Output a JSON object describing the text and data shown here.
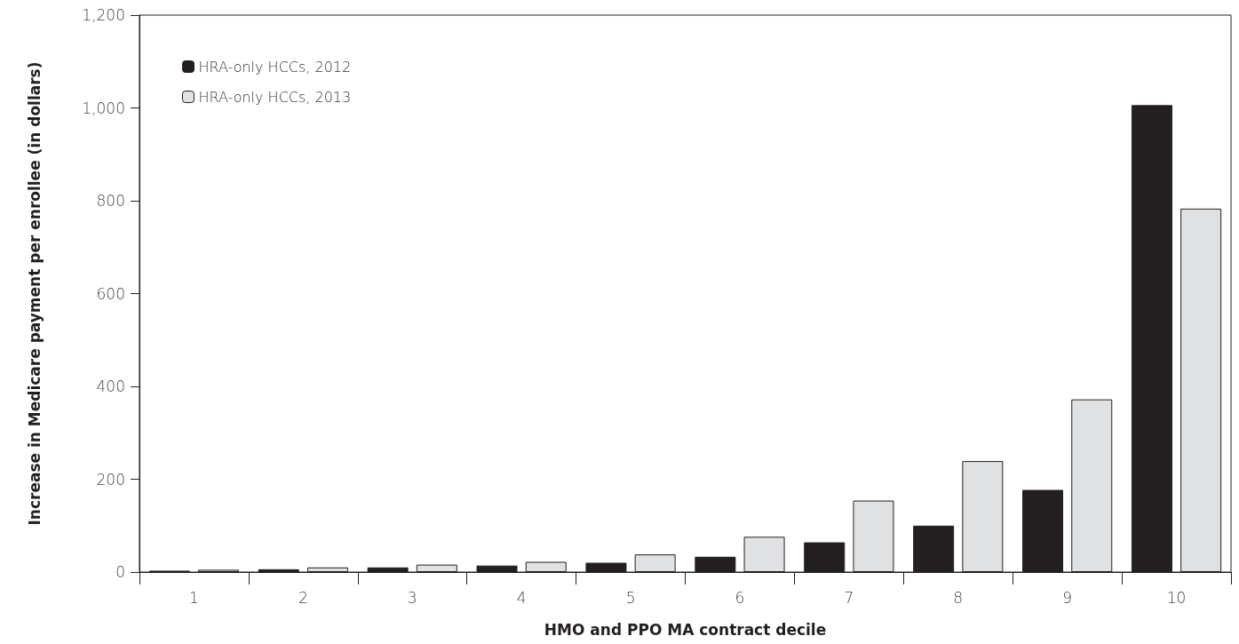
{
  "chart_data": {
    "type": "bar",
    "xlabel": "HMO and PPO MA contract decile",
    "ylabel": "Increase in Medicare payment per enrollee (in dollars)",
    "categories": [
      "1",
      "2",
      "3",
      "4",
      "5",
      "6",
      "7",
      "8",
      "9",
      "10"
    ],
    "series": [
      {
        "name": "HRA-only HCCs, 2012",
        "color": "#231f20",
        "values": [
          3,
          6,
          10,
          14,
          20,
          33,
          64,
          100,
          177,
          1006
        ]
      },
      {
        "name": "HRA-only HCCs, 2013",
        "color": "#e0e1e2",
        "values": [
          5,
          10,
          16,
          22,
          38,
          76,
          154,
          239,
          372,
          783
        ]
      }
    ],
    "ylim": [
      0,
      1200
    ],
    "yticks": [
      0,
      {
        "value": 200,
        "label": "200"
      },
      {
        "value": 400,
        "label": "400"
      },
      {
        "value": 600,
        "label": "600"
      },
      {
        "value": 800,
        "label": "800"
      },
      {
        "value": 1000,
        "label": "1,000"
      },
      {
        "value": 1200,
        "label": "1,200"
      }
    ],
    "grid": false,
    "legend": "top left"
  }
}
